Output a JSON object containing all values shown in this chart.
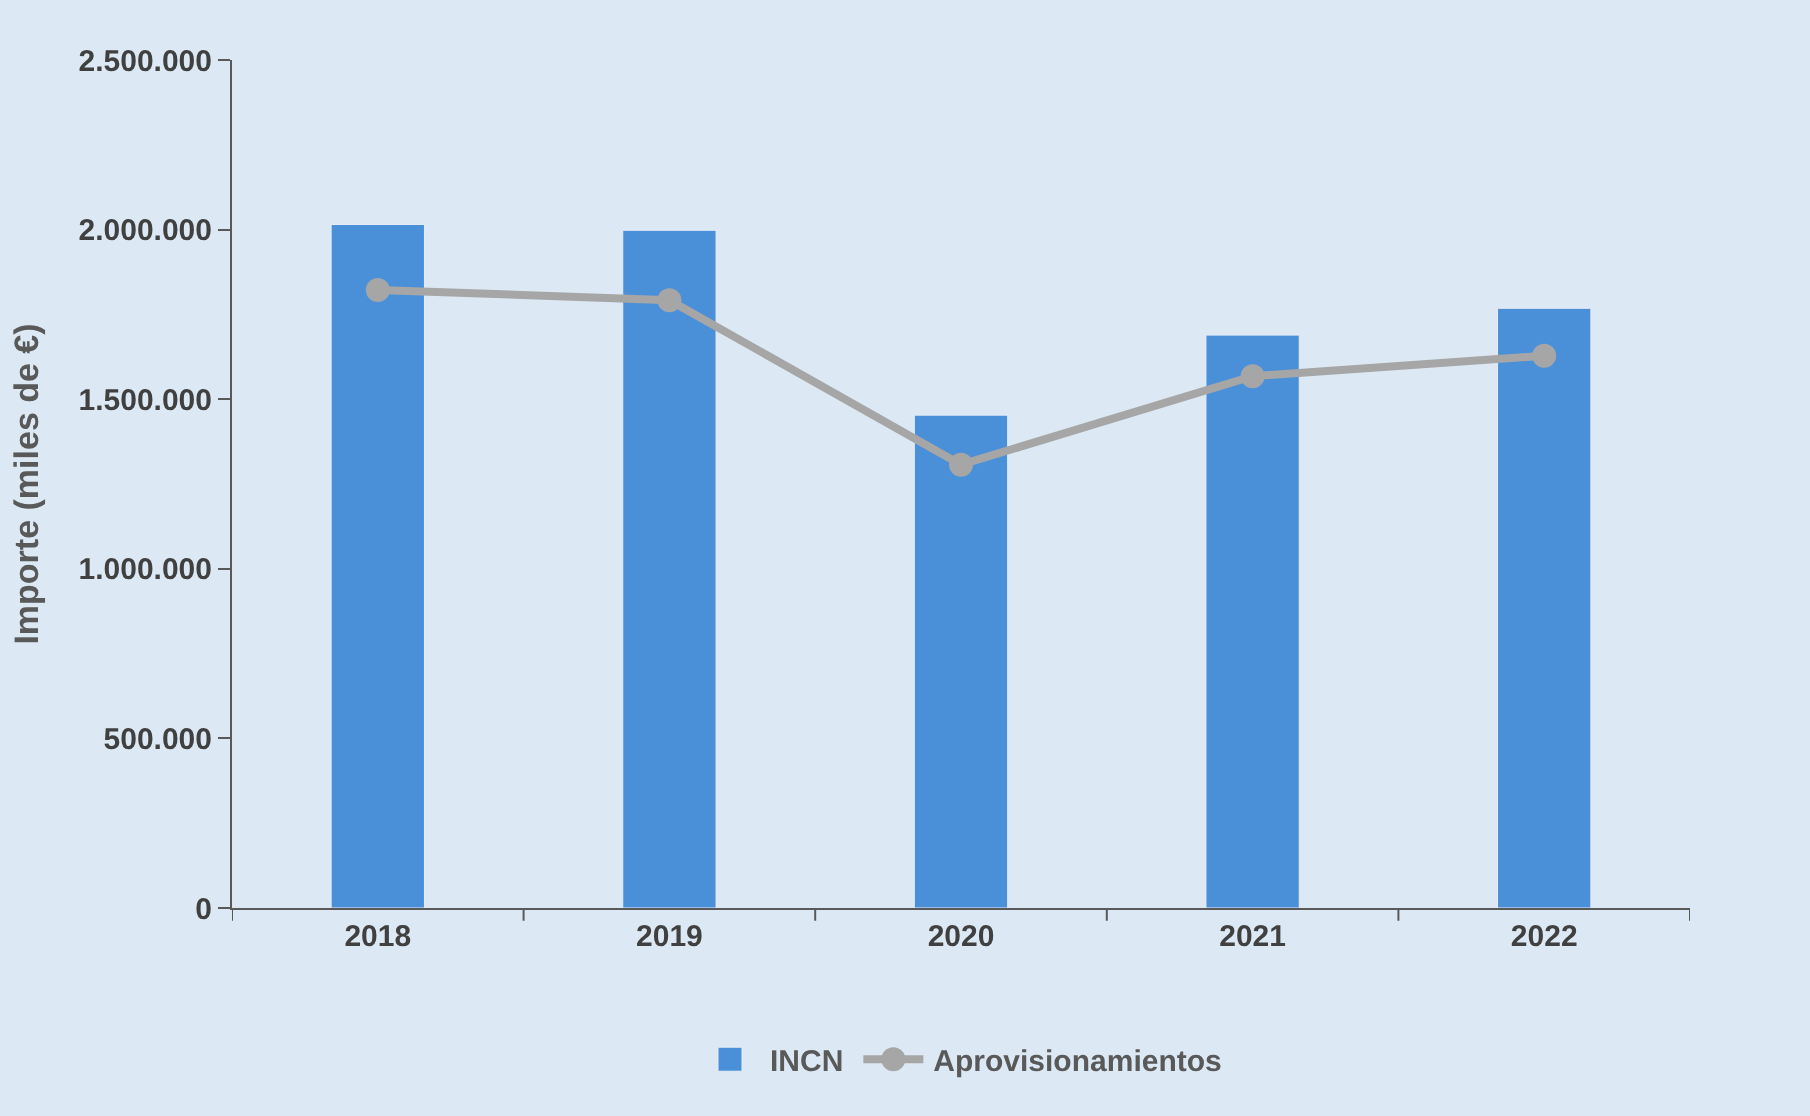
{
  "chart_data": {
    "type": "bar",
    "ylabel": "Importe (miles de €)",
    "categories": [
      "2018",
      "2019",
      "2020",
      "2021",
      "2022"
    ],
    "series": [
      {
        "name": "INCN",
        "color": "#4a90d9",
        "values": [
          2015000,
          1998000,
          1453000,
          1689000,
          1768000
        ]
      },
      {
        "name": "Aprovisionamientos",
        "type": "line",
        "color": "#a6a6a6",
        "marker": "circle",
        "values": [
          1822000,
          1792000,
          1307000,
          1568000,
          1628000
        ]
      }
    ],
    "ylim": [
      0,
      2500000
    ],
    "yticks": [
      0,
      {
        "value": 500000,
        "label": "500.000"
      },
      {
        "value": 1000000,
        "label": "1.000.000"
      },
      {
        "value": 1500000,
        "label": "1.500.000"
      },
      {
        "value": 2000000,
        "label": "2.000.000"
      },
      {
        "value": 2500000,
        "label": "2.500.000"
      }
    ],
    "grid": false,
    "legend": "bottom"
  }
}
